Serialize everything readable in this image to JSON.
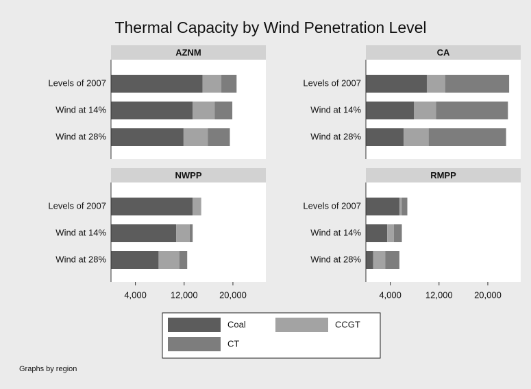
{
  "title": "Thermal Capacity by Wind Penetration Level",
  "note": "Graphs by region",
  "chart_data": [
    {
      "type": "bar",
      "orientation": "horizontal",
      "stacked": true,
      "title": "AZNM",
      "categories": [
        "Levels of 2007",
        "Wind at 14%",
        "Wind at 28%"
      ],
      "series": [
        {
          "name": "Coal",
          "color": "#5c5c5c",
          "values": [
            15000,
            13400,
            11900
          ]
        },
        {
          "name": "CCGT",
          "color": "#a3a3a3",
          "values": [
            3100,
            3600,
            4000
          ]
        },
        {
          "name": "CT",
          "color": "#7d7d7d",
          "values": [
            2500,
            2900,
            3600
          ]
        }
      ],
      "xlim": [
        0,
        25400
      ]
    },
    {
      "type": "bar",
      "orientation": "horizontal",
      "stacked": true,
      "title": "CA",
      "categories": [
        "Levels of 2007",
        "Wind at 14%",
        "Wind at 28%"
      ],
      "series": [
        {
          "name": "Coal",
          "color": "#5c5c5c",
          "values": [
            10000,
            7900,
            6200
          ]
        },
        {
          "name": "CCGT",
          "color": "#a3a3a3",
          "values": [
            3000,
            3600,
            4100
          ]
        },
        {
          "name": "CT",
          "color": "#7d7d7d",
          "values": [
            10500,
            11800,
            12700
          ]
        }
      ],
      "xlim": [
        0,
        25400
      ]
    },
    {
      "type": "bar",
      "orientation": "horizontal",
      "stacked": true,
      "title": "NWPP",
      "categories": [
        "Levels of 2007",
        "Wind at 14%",
        "Wind at 28%"
      ],
      "series": [
        {
          "name": "Coal",
          "color": "#5c5c5c",
          "values": [
            13400,
            10700,
            7800
          ]
        },
        {
          "name": "CCGT",
          "color": "#a3a3a3",
          "values": [
            1400,
            2200,
            3400
          ]
        },
        {
          "name": "CT",
          "color": "#7d7d7d",
          "values": [
            0,
            500,
            1300
          ]
        }
      ],
      "xlim": [
        0,
        25400
      ],
      "xticks": [
        {
          "value": 4000,
          "label": "4,000"
        },
        {
          "value": 12000,
          "label": "12,000"
        },
        {
          "value": 20000,
          "label": "20,000"
        }
      ]
    },
    {
      "type": "bar",
      "orientation": "horizontal",
      "stacked": true,
      "title": "RMPP",
      "categories": [
        "Levels of 2007",
        "Wind at 14%",
        "Wind at 28%"
      ],
      "series": [
        {
          "name": "Coal",
          "color": "#5c5c5c",
          "values": [
            5500,
            3500,
            1200
          ]
        },
        {
          "name": "CCGT",
          "color": "#a3a3a3",
          "values": [
            400,
            1100,
            2000
          ]
        },
        {
          "name": "CT",
          "color": "#7d7d7d",
          "values": [
            900,
            1300,
            2300
          ]
        }
      ],
      "xlim": [
        0,
        25400
      ],
      "xticks": [
        {
          "value": 4000,
          "label": "4,000"
        },
        {
          "value": 12000,
          "label": "12,000"
        },
        {
          "value": 20000,
          "label": "20,000"
        }
      ]
    }
  ]
}
